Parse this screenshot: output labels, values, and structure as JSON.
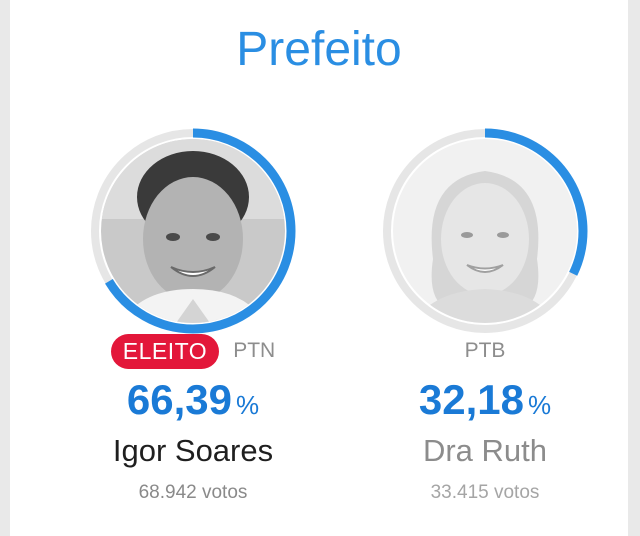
{
  "header": {
    "title": "Prefeito"
  },
  "colors": {
    "accent": "#2a8ee3",
    "badge": "#e3173a",
    "ring_track": "#e6e6e6"
  },
  "candidates": [
    {
      "status_badge": "ELEITO",
      "party": "PTN",
      "percent": "66,39",
      "percent_sign": "%",
      "name": "Igor Soares",
      "votes": "68.942 votos",
      "share": 0.6639
    },
    {
      "party": "PTB",
      "percent": "32,18",
      "percent_sign": "%",
      "name": "Dra Ruth",
      "votes": "33.415 votos",
      "share": 0.3218
    }
  ]
}
